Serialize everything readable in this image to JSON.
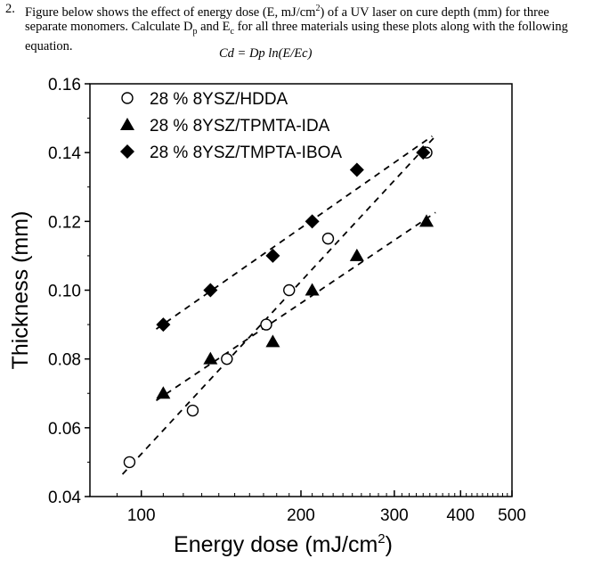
{
  "question": {
    "number": "2.",
    "text_before_exp": "Figure below shows the effect of energy dose (E, mJ/cm",
    "exp": "2",
    "text_after_exp": ") of a UV laser on cure depth (mm) for three separate monomers. Calculate D",
    "sub1": "p",
    "text_mid": " and E",
    "sub2": "c",
    "text_end": " for all three materials using these plots along with the following equation."
  },
  "equation": "Cd = Dp ln(E/Ec)",
  "chart_data": {
    "type": "scatter",
    "xscale": "log",
    "xlim": [
      80,
      500
    ],
    "ylim": [
      0.04,
      0.16
    ],
    "xlabel": "Energy dose (mJ/cm",
    "xlabel_exp": "2",
    "xlabel_close": ")",
    "ylabel": "Thickness (mm)",
    "xticks": [
      100,
      200,
      300,
      400,
      500
    ],
    "xtick_labels": [
      "100",
      "200",
      "300",
      "400",
      "500"
    ],
    "yticks": [
      0.04,
      0.06,
      0.08,
      0.1,
      0.12,
      0.14,
      0.16
    ],
    "ytick_labels": [
      "0.04",
      "0.06",
      "0.08",
      "0.10",
      "0.12",
      "0.14",
      "0.16"
    ],
    "legend_position": "top-left",
    "series": [
      {
        "name": "28 % 8YSZ/HDDA",
        "marker": "open-circle",
        "x": [
          95,
          125,
          145,
          172,
          190,
          225,
          345
        ],
        "y": [
          0.05,
          0.065,
          0.08,
          0.09,
          0.1,
          0.115,
          0.14
        ]
      },
      {
        "name": "28 % 8YSZ/TPMTA-IDA",
        "marker": "triangle",
        "x": [
          110,
          135,
          177,
          210,
          255,
          345
        ],
        "y": [
          0.07,
          0.08,
          0.085,
          0.1,
          0.11,
          0.12
        ]
      },
      {
        "name": "28 % 8YSZ/TMPTA-IBOA",
        "marker": "diamond",
        "x": [
          110,
          135,
          177,
          210,
          255,
          340
        ],
        "y": [
          0.09,
          0.1,
          0.11,
          0.12,
          0.135,
          0.14
        ]
      }
    ]
  }
}
